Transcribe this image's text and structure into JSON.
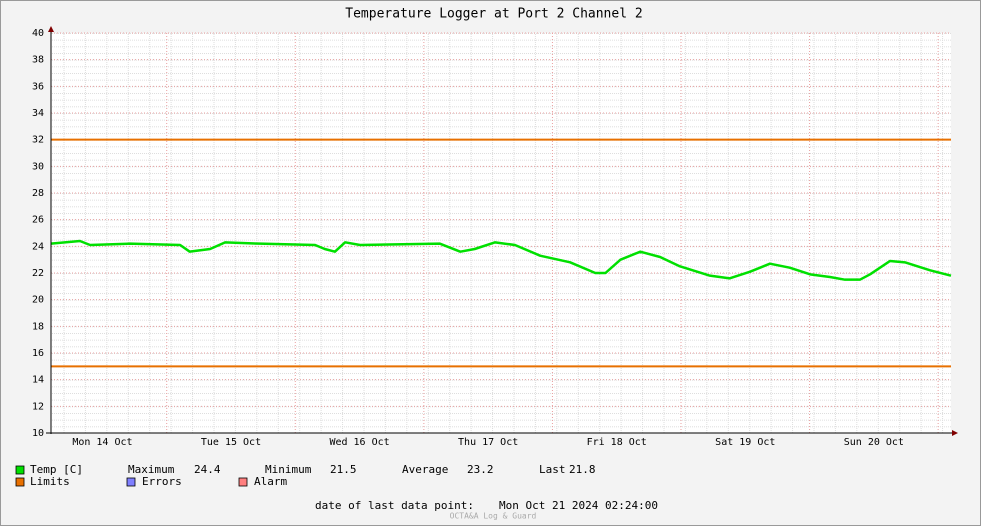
{
  "chart_data": {
    "type": "line",
    "title": "Temperature Logger at Port 2 Channel 2",
    "x": [
      0,
      5.4,
      7.3,
      14.7,
      24.1,
      25.9,
      29.7,
      32.5,
      39.0,
      49.3,
      51.1,
      53.0,
      54.9,
      57.7,
      72.6,
      76.4,
      79.1,
      82.9,
      86.6,
      91.3,
      96.9,
      101.6,
      103.5,
      106.3,
      110.0,
      113.7,
      117.4,
      123.0,
      126.7,
      130.5,
      134.2,
      137.9,
      141.7,
      145.4,
      148.2,
      151.0,
      152.9,
      156.6,
      159.4,
      164.1,
      168
    ],
    "series": [
      {
        "name": "Temp [C]",
        "color": "#00e000",
        "values": [
          24.2,
          24.4,
          24.1,
          24.2,
          24.1,
          23.6,
          23.8,
          24.3,
          24.2,
          24.1,
          23.8,
          23.6,
          24.3,
          24.1,
          24.2,
          23.6,
          23.8,
          24.3,
          24.1,
          23.3,
          22.8,
          22.0,
          22.0,
          23.0,
          23.6,
          23.2,
          22.5,
          21.8,
          21.6,
          22.1,
          22.7,
          22.4,
          21.9,
          21.7,
          21.5,
          21.5,
          21.9,
          22.9,
          22.8,
          22.2,
          21.8
        ]
      }
    ],
    "limits": {
      "name": "Limits",
      "color": "#e87000",
      "values": [
        32,
        15
      ]
    },
    "legend_extra": [
      {
        "name": "Errors",
        "color": "#7f7fff"
      },
      {
        "name": "Alarm",
        "color": "#ff7f7f"
      }
    ],
    "stats": [
      {
        "label": "Maximum",
        "value": 24.4
      },
      {
        "label": "Minimum",
        "value": 21.5
      },
      {
        "label": "Average",
        "value": 23.2
      },
      {
        "label": "Last",
        "value": 21.8
      }
    ],
    "xlim": [
      0,
      168
    ],
    "xticks": [
      {
        "value": 9.6,
        "label": "Mon 14 Oct"
      },
      {
        "value": 33.6,
        "label": "Tue 15 Oct"
      },
      {
        "value": 57.6,
        "label": "Wed 16 Oct"
      },
      {
        "value": 81.6,
        "label": "Thu 17 Oct"
      },
      {
        "value": 105.6,
        "label": "Fri 18 Oct"
      },
      {
        "value": 129.6,
        "label": "Sat 19 Oct"
      },
      {
        "value": 153.6,
        "label": "Sun 20 Oct"
      }
    ],
    "xgrid": [
      21.6,
      45.6,
      69.6,
      93.6,
      117.6,
      141.6,
      165.6
    ],
    "ylim": [
      10,
      40
    ],
    "yticks": [
      10,
      12,
      14,
      16,
      18,
      20,
      22,
      24,
      26,
      28,
      30,
      32,
      34,
      36,
      38,
      40
    ],
    "grid": true,
    "footer": {
      "label": "date of last data point:",
      "value": "Mon Oct 21 2024 02:24:00"
    },
    "watermark": "OCTA&A Log & Guard"
  }
}
